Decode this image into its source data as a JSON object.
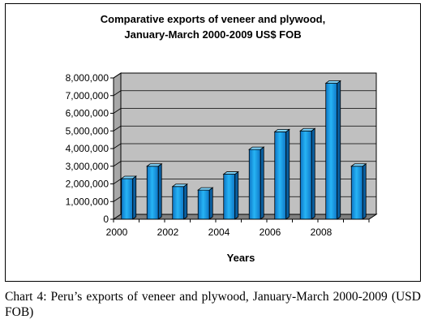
{
  "chart_data": {
    "type": "bar",
    "title": [
      "Comparative exports of veneer and plywood,",
      "January-March 2000-2009 US$ FOB"
    ],
    "xlabel": "Years",
    "ylabel": "",
    "categories": [
      "2000",
      "2001",
      "2002",
      "2003",
      "2004",
      "2005",
      "2006",
      "2007",
      "2008",
      "2009"
    ],
    "x_tick_labels": [
      "2000",
      "2002",
      "2004",
      "2006",
      "2008"
    ],
    "values": [
      2300000,
      3000000,
      1850000,
      1650000,
      2550000,
      3950000,
      4950000,
      5000000,
      7700000,
      3000000
    ],
    "ylim": [
      0,
      8000000
    ],
    "y_tick_labels": [
      "0",
      "1,000,000",
      "2,000,000",
      "3,000,000",
      "4,000,000",
      "5,000,000",
      "6,000,000",
      "7,000,000",
      "8,000,000"
    ],
    "grid": true,
    "legend": "none",
    "colors": {
      "bar_front": "#1aa0e8",
      "bar_top": "#7fd6ff",
      "bar_side": "#0a5fa0",
      "wall": "#c0c0c0",
      "floor": "#808080"
    }
  },
  "caption": "Chart 4: Peru’s exports of veneer and plywood, January-March 2000-2009 (USD FOB)"
}
